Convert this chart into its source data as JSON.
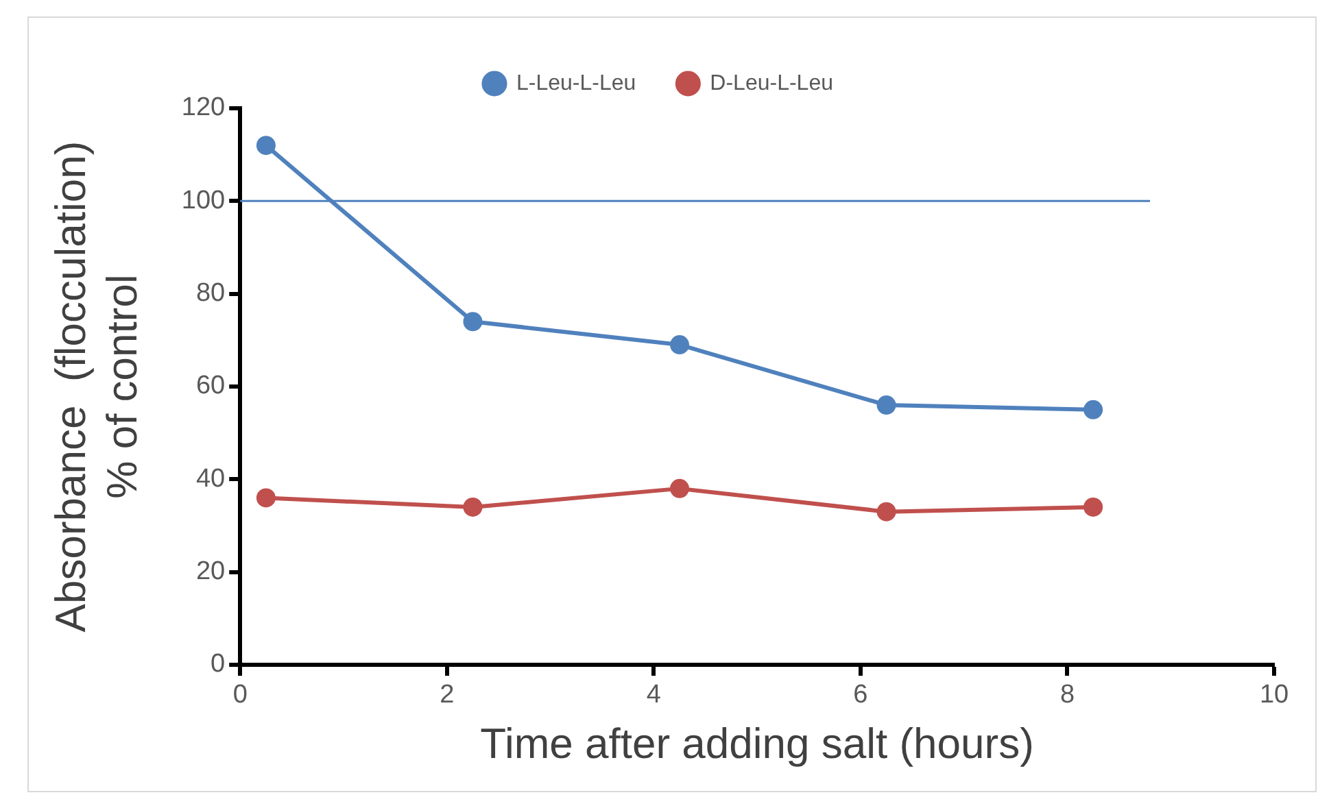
{
  "chart_data": {
    "type": "line",
    "xlabel": "Time after adding salt (hours)",
    "ylabel": "Absorbance  (flocculation)\n% of control",
    "x": [
      0.25,
      2.25,
      4.25,
      6.25,
      8.25
    ],
    "series": [
      {
        "name": "L-Leu-L-Leu",
        "color": "#4f81bd",
        "values": [
          112,
          74,
          69,
          56,
          55
        ]
      },
      {
        "name": "D-Leu-L-Leu",
        "color": "#c0504d",
        "values": [
          36,
          34,
          38,
          33,
          34
        ]
      }
    ],
    "xlim": [
      0,
      10
    ],
    "xticks": [
      0,
      2,
      4,
      6,
      8,
      10
    ],
    "ylim": [
      0,
      120
    ],
    "yticks": [
      0,
      20,
      40,
      60,
      80,
      100,
      120
    ],
    "ref_lines": [
      {
        "axis": "y",
        "value": 100,
        "color": "#4f81bd"
      }
    ],
    "grid": false,
    "legend": "top",
    "marker": "circle",
    "line_style": "solid"
  }
}
